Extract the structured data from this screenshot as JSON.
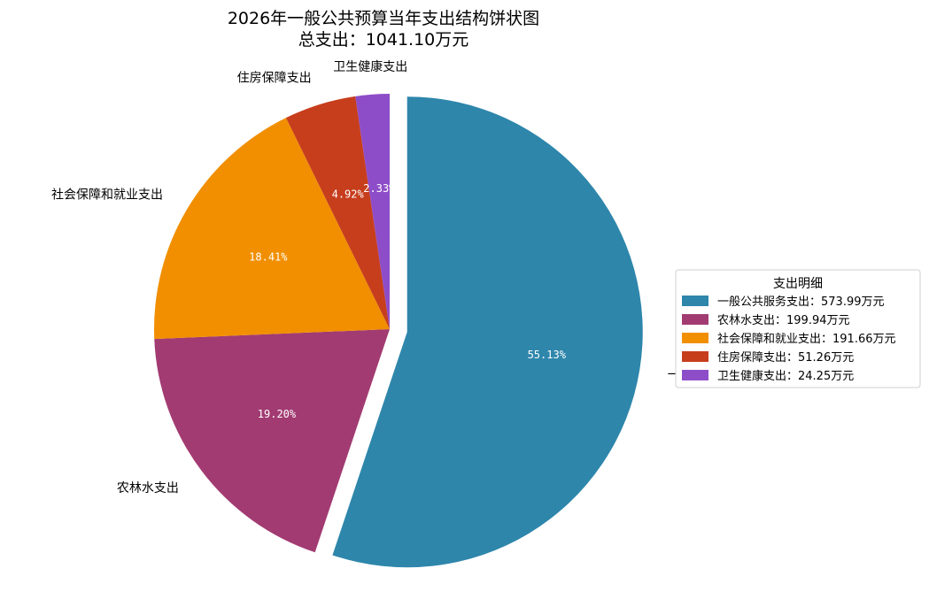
{
  "chart_data": {
    "type": "pie",
    "title": "2026年一般公共预算当年支出结构饼状图",
    "subtitle": "总支出：1041.10万元",
    "unit": "万元",
    "total": 1041.1,
    "slices": [
      {
        "label": "一般公共服务支出",
        "value": 573.99,
        "percent_label": "55.13%",
        "color": "#2e86ab",
        "explode": true,
        "legend_text": "一般公共服务支出：573.99万元"
      },
      {
        "label": "农林水支出",
        "value": 199.94,
        "percent_label": "19.20%",
        "color": "#a23b72",
        "explode": false,
        "legend_text": "农林水支出：199.94万元"
      },
      {
        "label": "社会保障和就业支出",
        "value": 191.66,
        "percent_label": "18.41%",
        "color": "#f18f01",
        "explode": false,
        "legend_text": "社会保障和就业支出：191.66万元"
      },
      {
        "label": "住房保障支出",
        "value": 51.26,
        "percent_label": "4.92%",
        "color": "#c73e1d",
        "explode": false,
        "legend_text": "住房保障支出：51.26万元"
      },
      {
        "label": "卫生健康支出",
        "value": 24.25,
        "percent_label": "2.33%",
        "color": "#8e4dc8",
        "explode": false,
        "legend_text": "卫生健康支出：24.25万元"
      }
    ],
    "start_angle_deg": 90,
    "direction": "clockwise",
    "legend": {
      "title": "支出明细",
      "placement": "right"
    }
  }
}
